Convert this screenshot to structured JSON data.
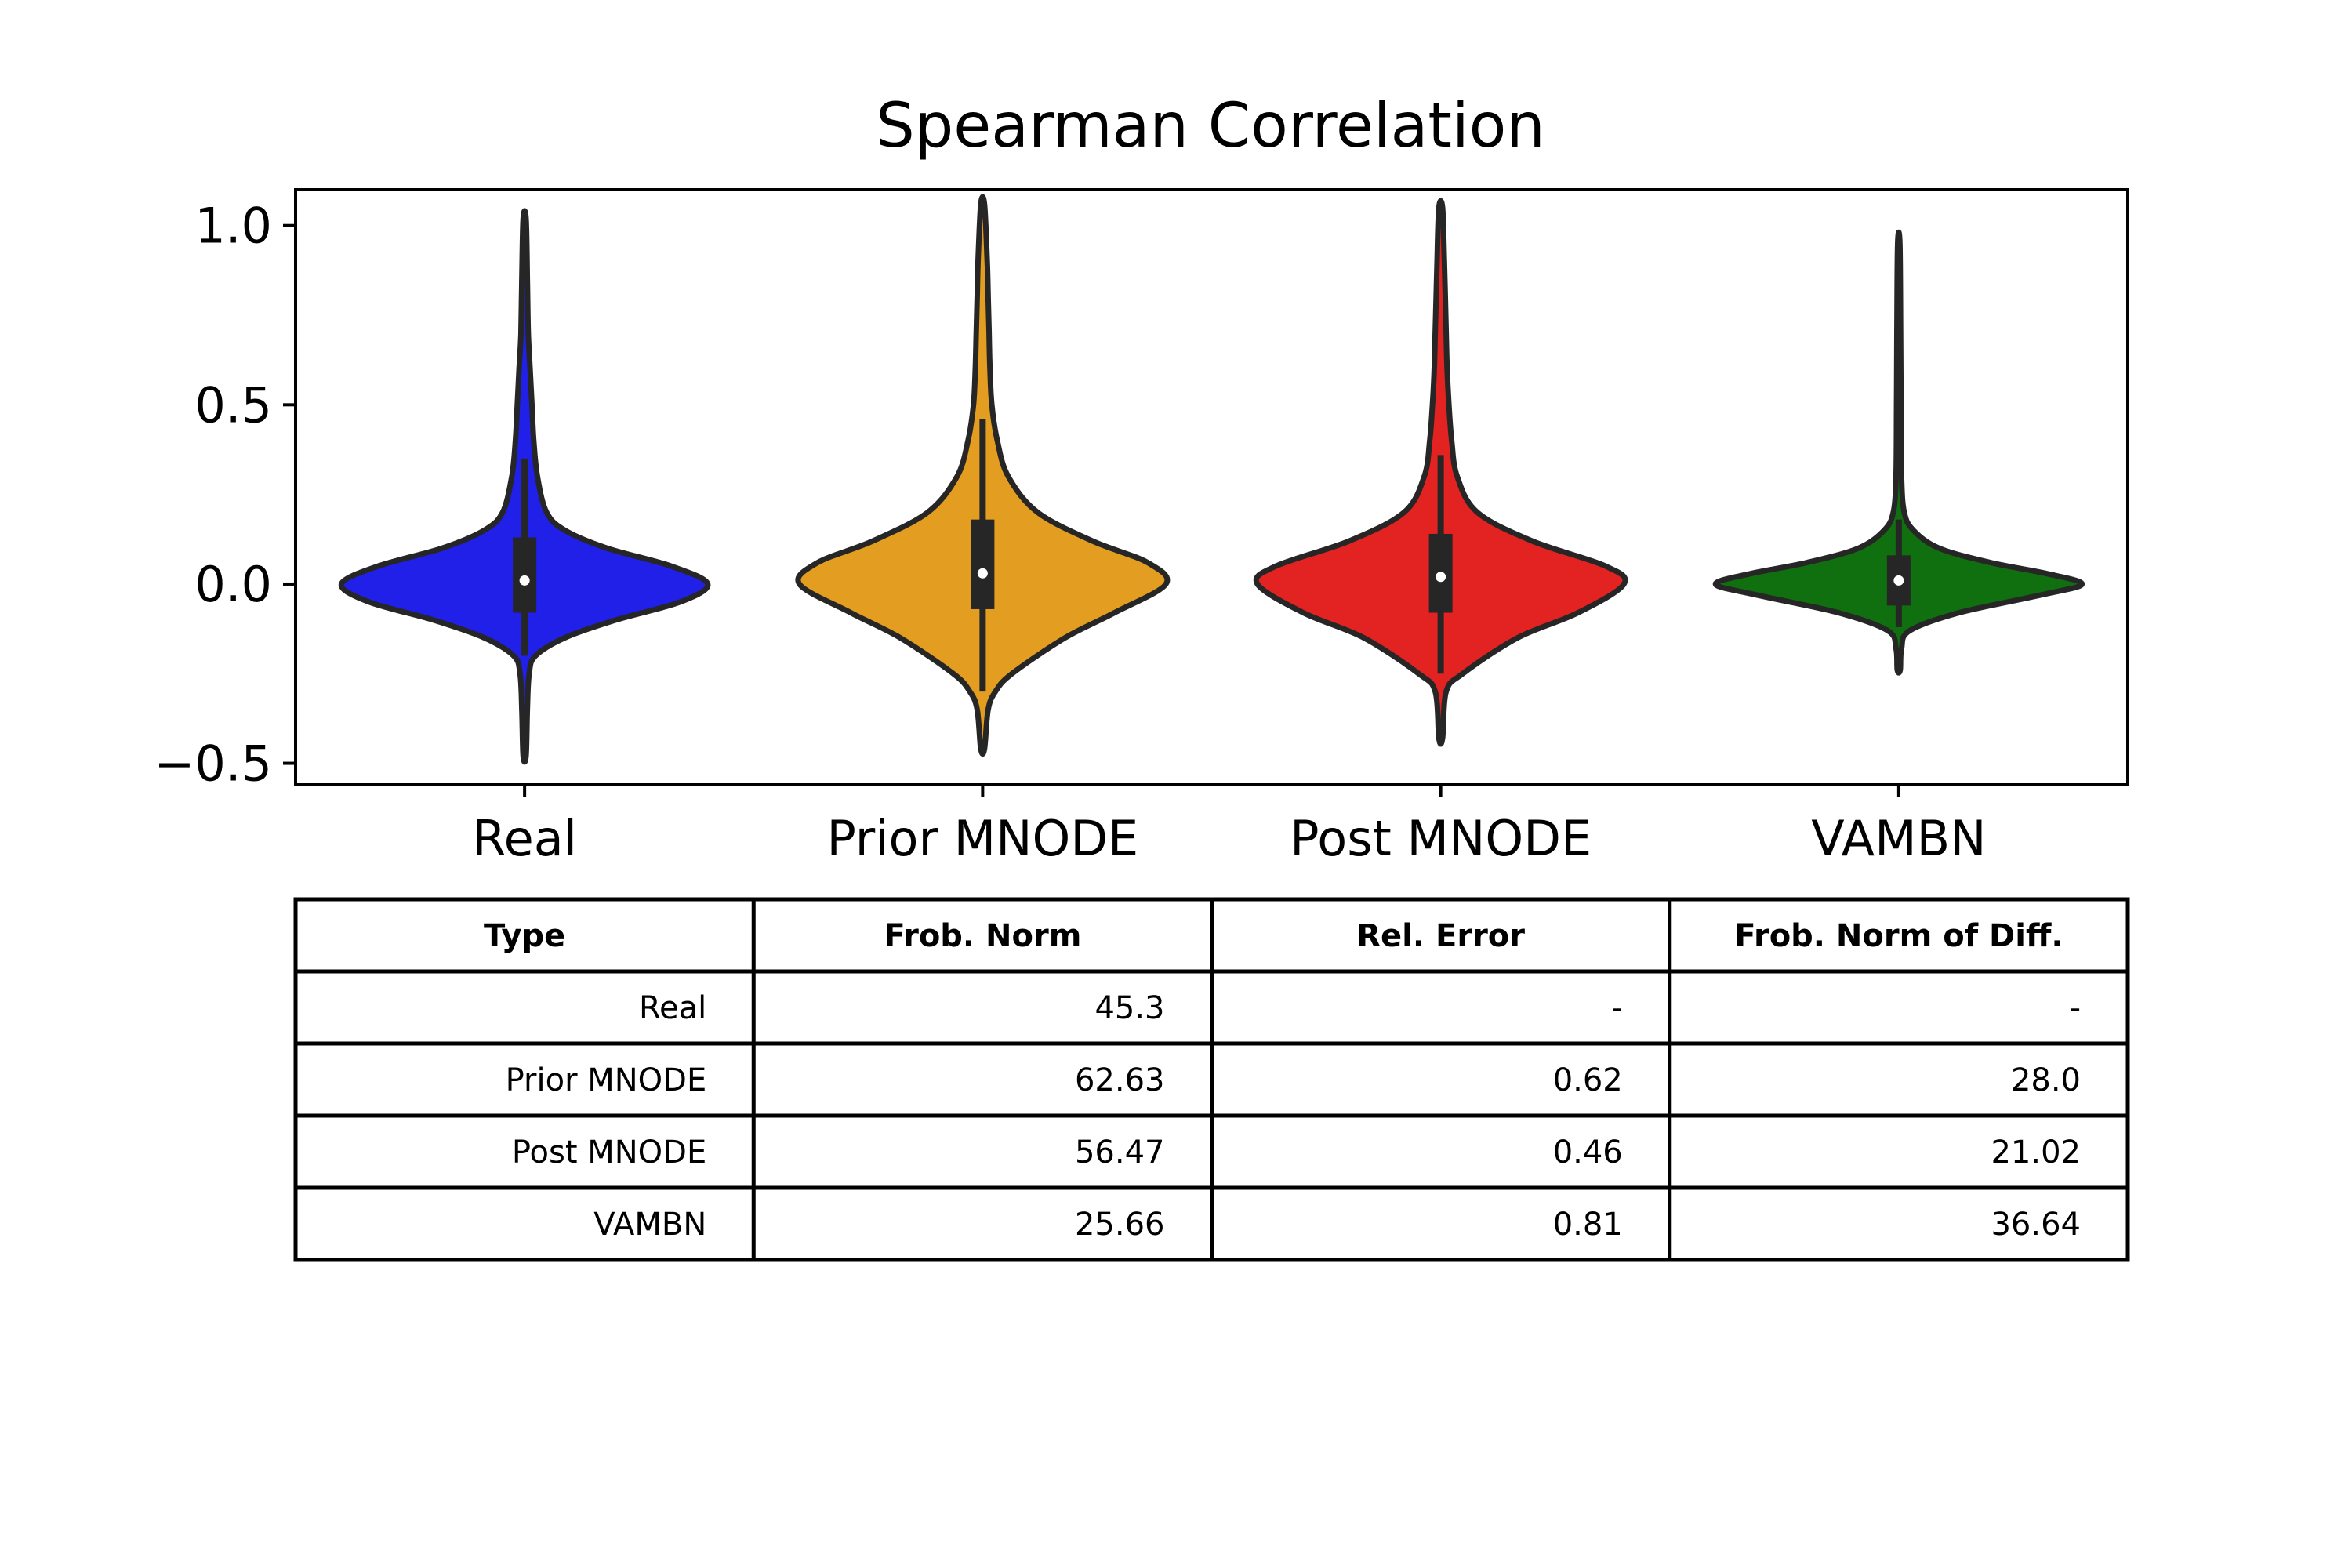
{
  "chart_data": {
    "type": "violin",
    "title": "Spearman Correlation",
    "xlabel": "",
    "ylabel": "",
    "ylim": [
      -0.56,
      1.1
    ],
    "yticks": [
      -0.5,
      0.0,
      0.5,
      1.0
    ],
    "ytick_labels": [
      "−0.5",
      "0.0",
      "0.5",
      "1.0"
    ],
    "grid": false,
    "categories": [
      "Real",
      "Prior MNODE",
      "Post MNODE",
      "VAMBN"
    ],
    "series": [
      {
        "category": "Real",
        "color": "#2020e8",
        "min": -0.48,
        "q1": -0.08,
        "median": 0.01,
        "q3": 0.13,
        "whisker_low": -0.2,
        "whisker_high": 0.35,
        "max": 1.02,
        "density": [
          [
            -0.48,
            0.008
          ],
          [
            -0.35,
            0.015
          ],
          [
            -0.25,
            0.025
          ],
          [
            -0.2,
            0.06
          ],
          [
            -0.15,
            0.22
          ],
          [
            -0.1,
            0.5
          ],
          [
            -0.05,
            0.85
          ],
          [
            0.0,
            1.0
          ],
          [
            0.05,
            0.8
          ],
          [
            0.1,
            0.45
          ],
          [
            0.15,
            0.22
          ],
          [
            0.2,
            0.12
          ],
          [
            0.3,
            0.07
          ],
          [
            0.4,
            0.05
          ],
          [
            0.5,
            0.04
          ],
          [
            0.6,
            0.03
          ],
          [
            0.7,
            0.02
          ],
          [
            0.85,
            0.015
          ],
          [
            1.02,
            0.008
          ]
        ]
      },
      {
        "category": "Prior MNODE",
        "color": "#e39e21",
        "min": -0.46,
        "q1": -0.07,
        "median": 0.03,
        "q3": 0.18,
        "whisker_low": -0.3,
        "whisker_high": 0.46,
        "max": 1.06,
        "density": [
          [
            -0.46,
            0.01
          ],
          [
            -0.35,
            0.03
          ],
          [
            -0.3,
            0.07
          ],
          [
            -0.25,
            0.16
          ],
          [
            -0.15,
            0.45
          ],
          [
            -0.08,
            0.72
          ],
          [
            0.0,
            1.0
          ],
          [
            0.06,
            0.9
          ],
          [
            0.12,
            0.6
          ],
          [
            0.2,
            0.3
          ],
          [
            0.3,
            0.14
          ],
          [
            0.4,
            0.08
          ],
          [
            0.5,
            0.05
          ],
          [
            0.6,
            0.04
          ],
          [
            0.7,
            0.035
          ],
          [
            0.8,
            0.03
          ],
          [
            0.9,
            0.025
          ],
          [
            1.06,
            0.01
          ]
        ]
      },
      {
        "category": "Post MNODE",
        "color": "#e32222",
        "min": -0.43,
        "q1": -0.08,
        "median": 0.02,
        "q3": 0.14,
        "whisker_low": -0.25,
        "whisker_high": 0.36,
        "max": 1.05,
        "density": [
          [
            -0.43,
            0.01
          ],
          [
            -0.3,
            0.03
          ],
          [
            -0.25,
            0.12
          ],
          [
            -0.15,
            0.42
          ],
          [
            -0.08,
            0.75
          ],
          [
            0.0,
            1.0
          ],
          [
            0.05,
            0.9
          ],
          [
            0.12,
            0.5
          ],
          [
            0.2,
            0.2
          ],
          [
            0.3,
            0.09
          ],
          [
            0.4,
            0.06
          ],
          [
            0.5,
            0.045
          ],
          [
            0.6,
            0.035
          ],
          [
            0.7,
            0.03
          ],
          [
            0.8,
            0.025
          ],
          [
            0.9,
            0.02
          ],
          [
            1.05,
            0.01
          ]
        ]
      },
      {
        "category": "VAMBN",
        "color": "#107010",
        "min": -0.24,
        "q1": -0.06,
        "median": 0.01,
        "q3": 0.08,
        "whisker_low": -0.12,
        "whisker_high": 0.18,
        "max": 0.95,
        "density": [
          [
            -0.24,
            0.008
          ],
          [
            -0.18,
            0.015
          ],
          [
            -0.13,
            0.06
          ],
          [
            -0.08,
            0.33
          ],
          [
            -0.03,
            0.78
          ],
          [
            0.0,
            1.0
          ],
          [
            0.03,
            0.8
          ],
          [
            0.06,
            0.5
          ],
          [
            0.1,
            0.22
          ],
          [
            0.15,
            0.08
          ],
          [
            0.2,
            0.03
          ],
          [
            0.3,
            0.015
          ],
          [
            0.5,
            0.012
          ],
          [
            0.7,
            0.01
          ],
          [
            0.95,
            0.006
          ]
        ]
      }
    ]
  },
  "table": {
    "headers": [
      "Type",
      "Frob. Norm",
      "Rel. Error",
      "Frob. Norm of Diff."
    ],
    "rows": [
      [
        "Real",
        "45.3",
        "-",
        "-"
      ],
      [
        "Prior MNODE",
        "62.63",
        "0.62",
        "28.0"
      ],
      [
        "Post MNODE",
        "56.47",
        "0.46",
        "21.02"
      ],
      [
        "VAMBN",
        "25.66",
        "0.81",
        "36.64"
      ]
    ]
  }
}
